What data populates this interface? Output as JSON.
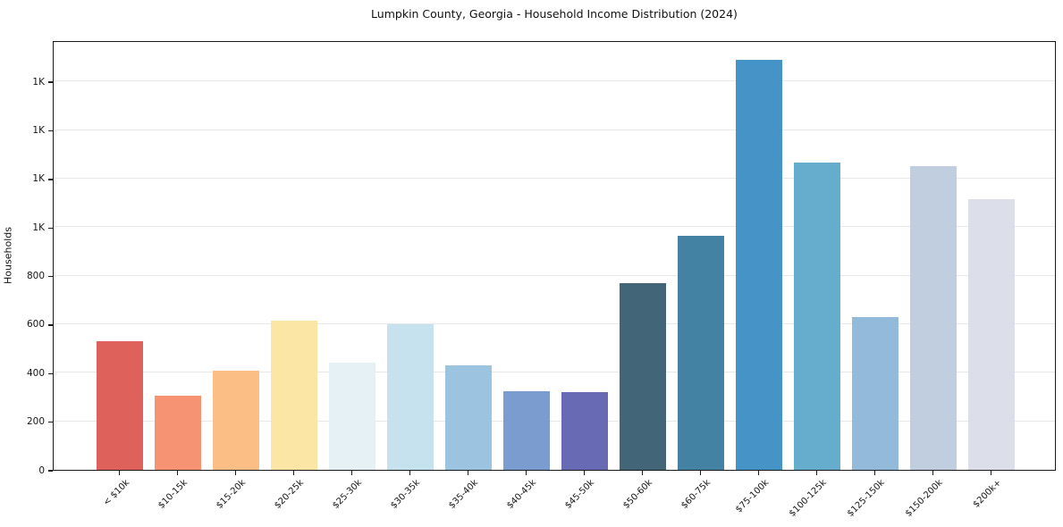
{
  "chart_data": {
    "type": "bar",
    "title": "Lumpkin County, Georgia - Household Income Distribution (2024)",
    "xlabel": "",
    "ylabel": "Households",
    "categories": [
      "< $10k",
      "$10-15k",
      "$15-20k",
      "$20-25k",
      "$25-30k",
      "$30-35k",
      "$35-40k",
      "$40-45k",
      "$45-50k",
      "$50-60k",
      "$60-75k",
      "$75-100k",
      "$100-125k",
      "$125-150k",
      "$150-200k",
      "$200k+"
    ],
    "values": [
      530,
      305,
      410,
      615,
      440,
      600,
      430,
      325,
      320,
      770,
      965,
      1690,
      1265,
      630,
      1250,
      1115
    ],
    "bar_colors": [
      "#db5550",
      "#f48b68",
      "#fbb97c",
      "#fce49f",
      "#e4f0f4",
      "#c2e0ed",
      "#94bedd",
      "#7195cb",
      "#5c5fad",
      "#35596e",
      "#35789c",
      "#388cc3",
      "#5aa7c9",
      "#8cb5d8",
      "#bccade",
      "#d9dbe8"
    ],
    "ylim": [
      0,
      1770
    ],
    "yticks": [
      {
        "value": 0,
        "label": "0"
      },
      {
        "value": 200,
        "label": "200"
      },
      {
        "value": 400,
        "label": "400"
      },
      {
        "value": 600,
        "label": "600"
      },
      {
        "value": 800,
        "label": "800"
      },
      {
        "value": 1000,
        "label": "1K"
      },
      {
        "value": 1200,
        "label": "1K"
      },
      {
        "value": 1400,
        "label": "1K"
      },
      {
        "value": 1600,
        "label": "1K"
      }
    ],
    "grid": "horizontal-only",
    "legend": "none",
    "text_color": "#161616",
    "gridline_color": "#e8e8e8",
    "background_color": "#ffffff"
  }
}
